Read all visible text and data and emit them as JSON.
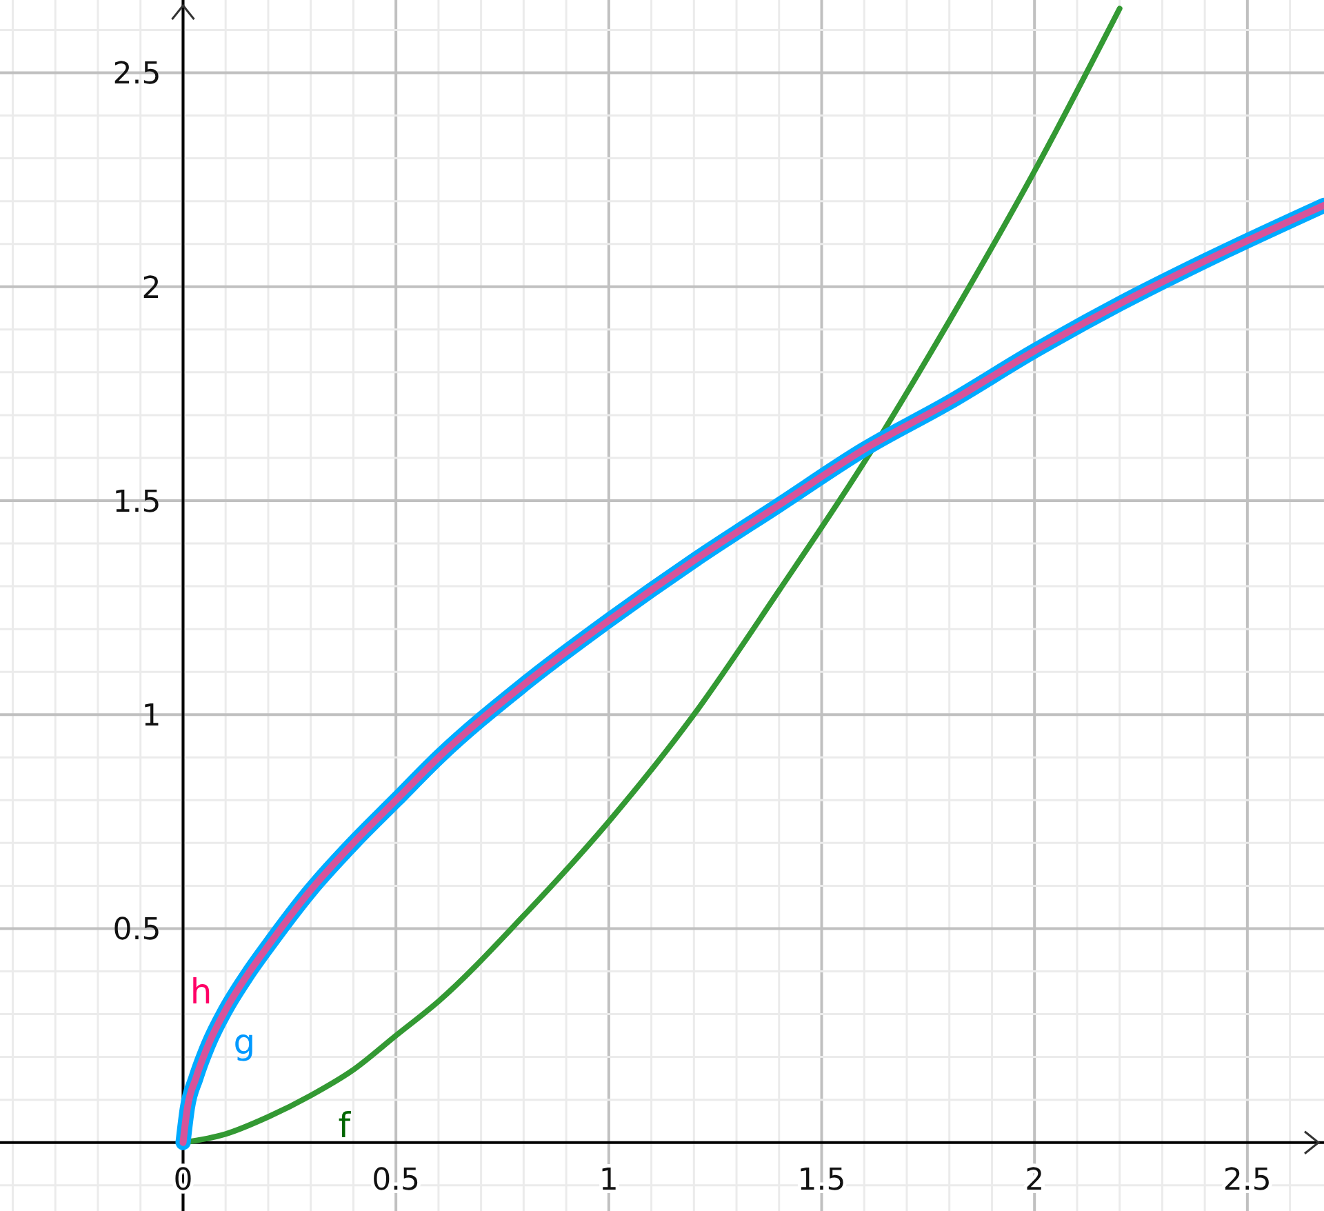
{
  "chart_data": {
    "type": "line",
    "xlim": [
      -0.43,
      2.68
    ],
    "ylim": [
      -0.16,
      2.67
    ],
    "xticks": [
      {
        "value": -0.4,
        "label": null
      },
      {
        "value": -0.3,
        "label": null
      },
      {
        "value": -0.2,
        "label": null
      },
      {
        "value": -0.1,
        "label": null
      },
      0,
      {
        "value": 0.1,
        "label": null
      },
      {
        "value": 0.2,
        "label": null
      },
      {
        "value": 0.3,
        "label": null
      },
      {
        "value": 0.4,
        "label": null
      },
      0.5,
      {
        "value": 0.6,
        "label": null
      },
      {
        "value": 0.7,
        "label": null
      },
      {
        "value": 0.8,
        "label": null
      },
      {
        "value": 0.9,
        "label": null
      },
      1,
      {
        "value": 1.1,
        "label": null
      },
      {
        "value": 1.2,
        "label": null
      },
      {
        "value": 1.3,
        "label": null
      },
      {
        "value": 1.4,
        "label": null
      },
      1.5,
      {
        "value": 1.6,
        "label": null
      },
      {
        "value": 1.7,
        "label": null
      },
      {
        "value": 1.8,
        "label": null
      },
      {
        "value": 1.9,
        "label": null
      },
      2,
      {
        "value": 2.1,
        "label": null
      },
      {
        "value": 2.2,
        "label": null
      },
      {
        "value": 2.3,
        "label": null
      },
      {
        "value": 2.4,
        "label": null
      },
      2.5,
      {
        "value": 2.6,
        "label": null
      }
    ],
    "yticks": [
      {
        "value": -0.1,
        "label": null
      },
      {
        "value": 0.1,
        "label": null
      },
      {
        "value": 0.2,
        "label": null
      },
      {
        "value": 0.3,
        "label": null
      },
      {
        "value": 0.4,
        "label": null
      },
      0.5,
      {
        "value": 0.6,
        "label": null
      },
      {
        "value": 0.7,
        "label": null
      },
      {
        "value": 0.8,
        "label": null
      },
      {
        "value": 0.9,
        "label": null
      },
      1,
      {
        "value": 1.1,
        "label": null
      },
      {
        "value": 1.2,
        "label": null
      },
      {
        "value": 1.3,
        "label": null
      },
      {
        "value": 1.4,
        "label": null
      },
      1.5,
      {
        "value": 1.6,
        "label": null
      },
      {
        "value": 1.7,
        "label": null
      },
      {
        "value": 1.8,
        "label": null
      },
      {
        "value": 1.9,
        "label": null
      },
      2,
      {
        "value": 2.1,
        "label": null
      },
      {
        "value": 2.2,
        "label": null
      },
      {
        "value": 2.3,
        "label": null
      },
      {
        "value": 2.4,
        "label": null
      },
      2.5,
      {
        "value": 2.6,
        "label": null
      }
    ],
    "grid": true,
    "marker": "none",
    "line_style": "solid",
    "series": [
      {
        "name": "f",
        "color": "#339933",
        "x": [
          0,
          0.1,
          0.2,
          0.3,
          0.4,
          0.5,
          0.6,
          0.8,
          1,
          1.2,
          1.4,
          1.6,
          1.8,
          2,
          2.2
        ],
        "values": [
          0,
          0.02,
          0.06,
          0.11,
          0.17,
          0.25,
          0.33,
          0.53,
          0.75,
          1.0,
          1.29,
          1.59,
          1.92,
          2.27,
          2.65
        ]
      },
      {
        "name": "g",
        "color": "#00aaff",
        "x": [
          0,
          0.01,
          0.03,
          0.06,
          0.1,
          0.15,
          0.2,
          0.3,
          0.4,
          0.5,
          0.6,
          0.8,
          1,
          1.2,
          1.4,
          1.6,
          1.8,
          2,
          2.2,
          2.4,
          2.68
        ],
        "values": [
          0,
          0.08,
          0.15,
          0.23,
          0.31,
          0.39,
          0.46,
          0.59,
          0.7,
          0.8,
          0.9,
          1.07,
          1.22,
          1.36,
          1.49,
          1.62,
          1.73,
          1.85,
          1.96,
          2.06,
          2.19
        ]
      },
      {
        "name": "h",
        "color": "#d6549a",
        "x": [
          0,
          0.01,
          0.03,
          0.06,
          0.1,
          0.15,
          0.2,
          0.3,
          0.4,
          0.5,
          0.6,
          0.8,
          1,
          1.2,
          1.4,
          1.6,
          1.8,
          2,
          2.2,
          2.4,
          2.68
        ],
        "values": [
          0,
          0.08,
          0.15,
          0.23,
          0.31,
          0.39,
          0.46,
          0.59,
          0.7,
          0.8,
          0.9,
          1.07,
          1.22,
          1.36,
          1.49,
          1.62,
          1.73,
          1.85,
          1.96,
          2.06,
          2.19
        ]
      }
    ]
  }
}
